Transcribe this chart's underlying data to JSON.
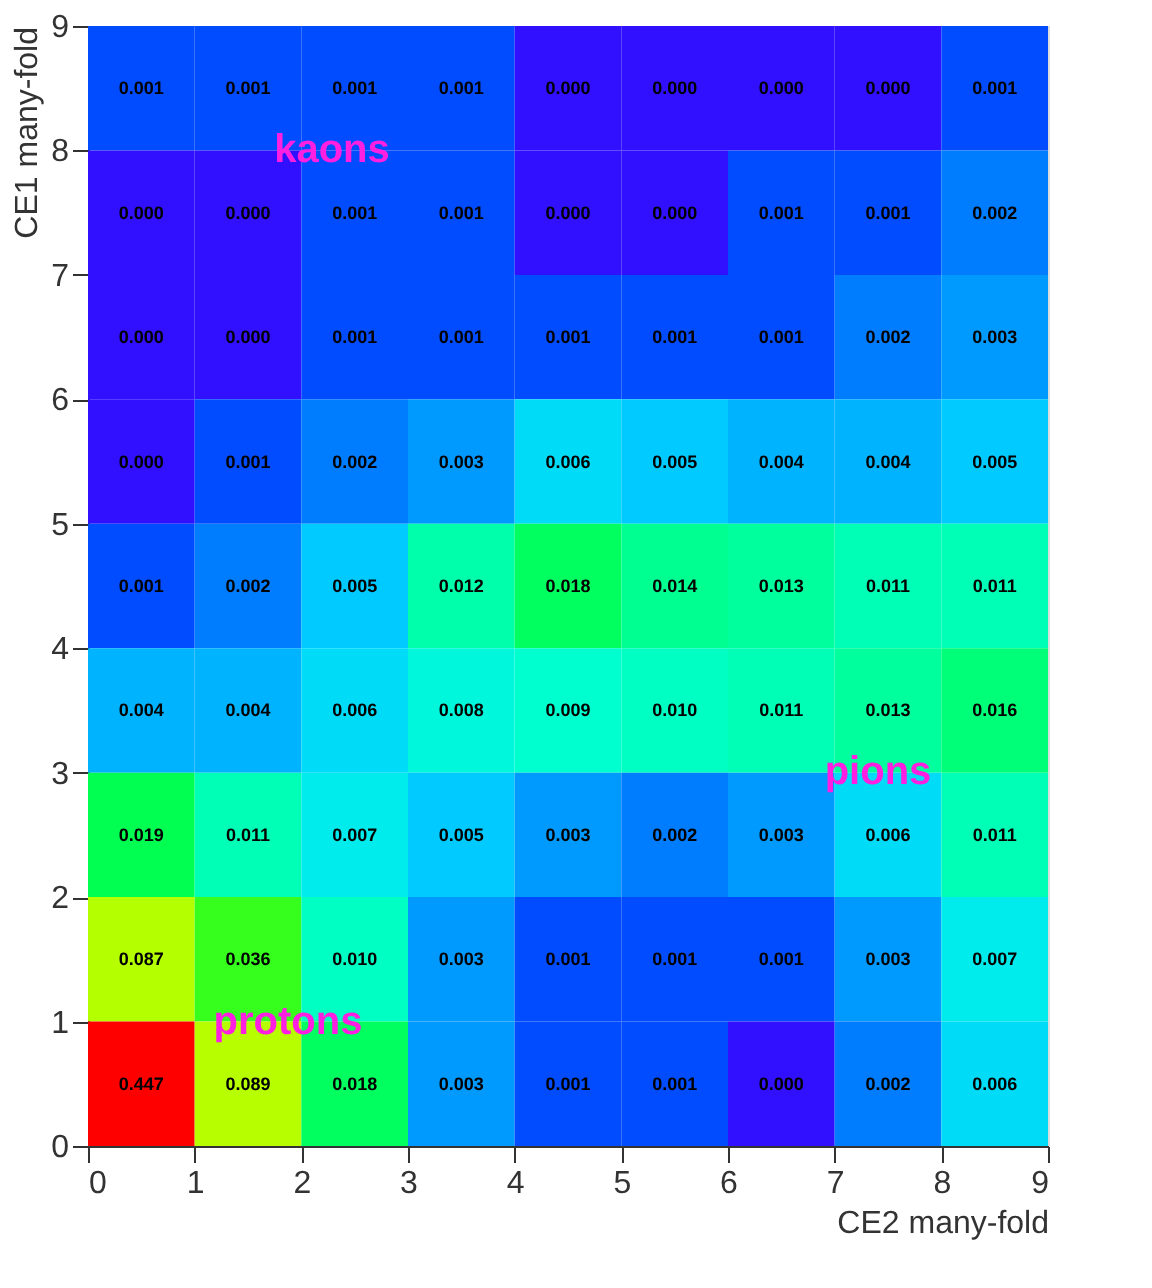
{
  "chart_data": {
    "type": "heatmap",
    "xlabel": "CE2 many-fold",
    "ylabel": "CE1 many-fold",
    "xlim": [
      0,
      9
    ],
    "ylim": [
      0,
      9
    ],
    "xticks": [
      0,
      1,
      2,
      3,
      4,
      5,
      6,
      7,
      8,
      9
    ],
    "yticks": [
      0,
      1,
      2,
      3,
      4,
      5,
      6,
      7,
      8,
      9
    ],
    "colors": [
      "#3010ff",
      "#0050ff",
      "#00a8ff",
      "#00ffd0",
      "#00ff40",
      "#40ff00",
      "#c0ff00",
      "#ffe600",
      "#ff0000"
    ],
    "cells": [
      [
        0.001,
        0.001,
        0.001,
        0.001,
        0.0,
        0.0,
        0.0,
        0.0,
        0.001
      ],
      [
        0.0,
        0.0,
        0.001,
        0.001,
        0.0,
        0.0,
        0.001,
        0.001,
        0.002
      ],
      [
        0.0,
        0.0,
        0.001,
        0.001,
        0.001,
        0.001,
        0.001,
        0.002,
        0.003
      ],
      [
        0.0,
        0.001,
        0.002,
        0.003,
        0.006,
        0.005,
        0.004,
        0.004,
        0.005
      ],
      [
        0.001,
        0.002,
        0.005,
        0.012,
        0.018,
        0.014,
        0.013,
        0.011,
        0.011
      ],
      [
        0.004,
        0.004,
        0.006,
        0.008,
        0.009,
        0.01,
        0.011,
        0.013,
        0.016
      ],
      [
        0.019,
        0.011,
        0.007,
        0.005,
        0.003,
        0.002,
        0.003,
        0.006,
        0.011
      ],
      [
        0.087,
        0.036,
        0.01,
        0.003,
        0.001,
        0.001,
        0.001,
        0.003,
        0.007
      ],
      [
        0.447,
        0.089,
        0.018,
        0.003,
        0.001,
        0.001,
        0.0,
        0.002,
        0.006
      ]
    ],
    "cell_labels": [
      [
        "0.001",
        "0.001",
        "0.001",
        "0.001",
        "0.000",
        "0.000",
        "0.000",
        "0.000",
        "0.001"
      ],
      [
        "0.000",
        "0.000",
        "0.001",
        "0.001",
        "0.000",
        "0.000",
        "0.001",
        "0.001",
        "0.002"
      ],
      [
        "0.000",
        "0.000",
        "0.001",
        "0.001",
        "0.001",
        "0.001",
        "0.001",
        "0.002",
        "0.003"
      ],
      [
        "0.000",
        "0.001",
        "0.002",
        "0.003",
        "0.006",
        "0.005",
        "0.004",
        "0.004",
        "0.005"
      ],
      [
        "0.001",
        "0.002",
        "0.005",
        "0.012",
        "0.018",
        "0.014",
        "0.013",
        "0.011",
        "0.011"
      ],
      [
        "0.004",
        "0.004",
        "0.006",
        "0.008",
        "0.009",
        "0.010",
        "0.011",
        "0.013",
        "0.016"
      ],
      [
        "0.019",
        "0.011",
        "0.007",
        "0.005",
        "0.003",
        "0.002",
        "0.003",
        "0.006",
        "0.011"
      ],
      [
        "0.087",
        "0.036",
        "0.010",
        "0.003",
        "0.001",
        "0.001",
        "0.001",
        "0.003",
        "0.007"
      ],
      [
        "0.447",
        "0.089",
        "0.018",
        "0.003",
        "0.001",
        "0.001",
        "0.000",
        "0.002",
        "0.006"
      ]
    ],
    "annotations": [
      "kaons",
      "protons",
      "pions"
    ]
  }
}
